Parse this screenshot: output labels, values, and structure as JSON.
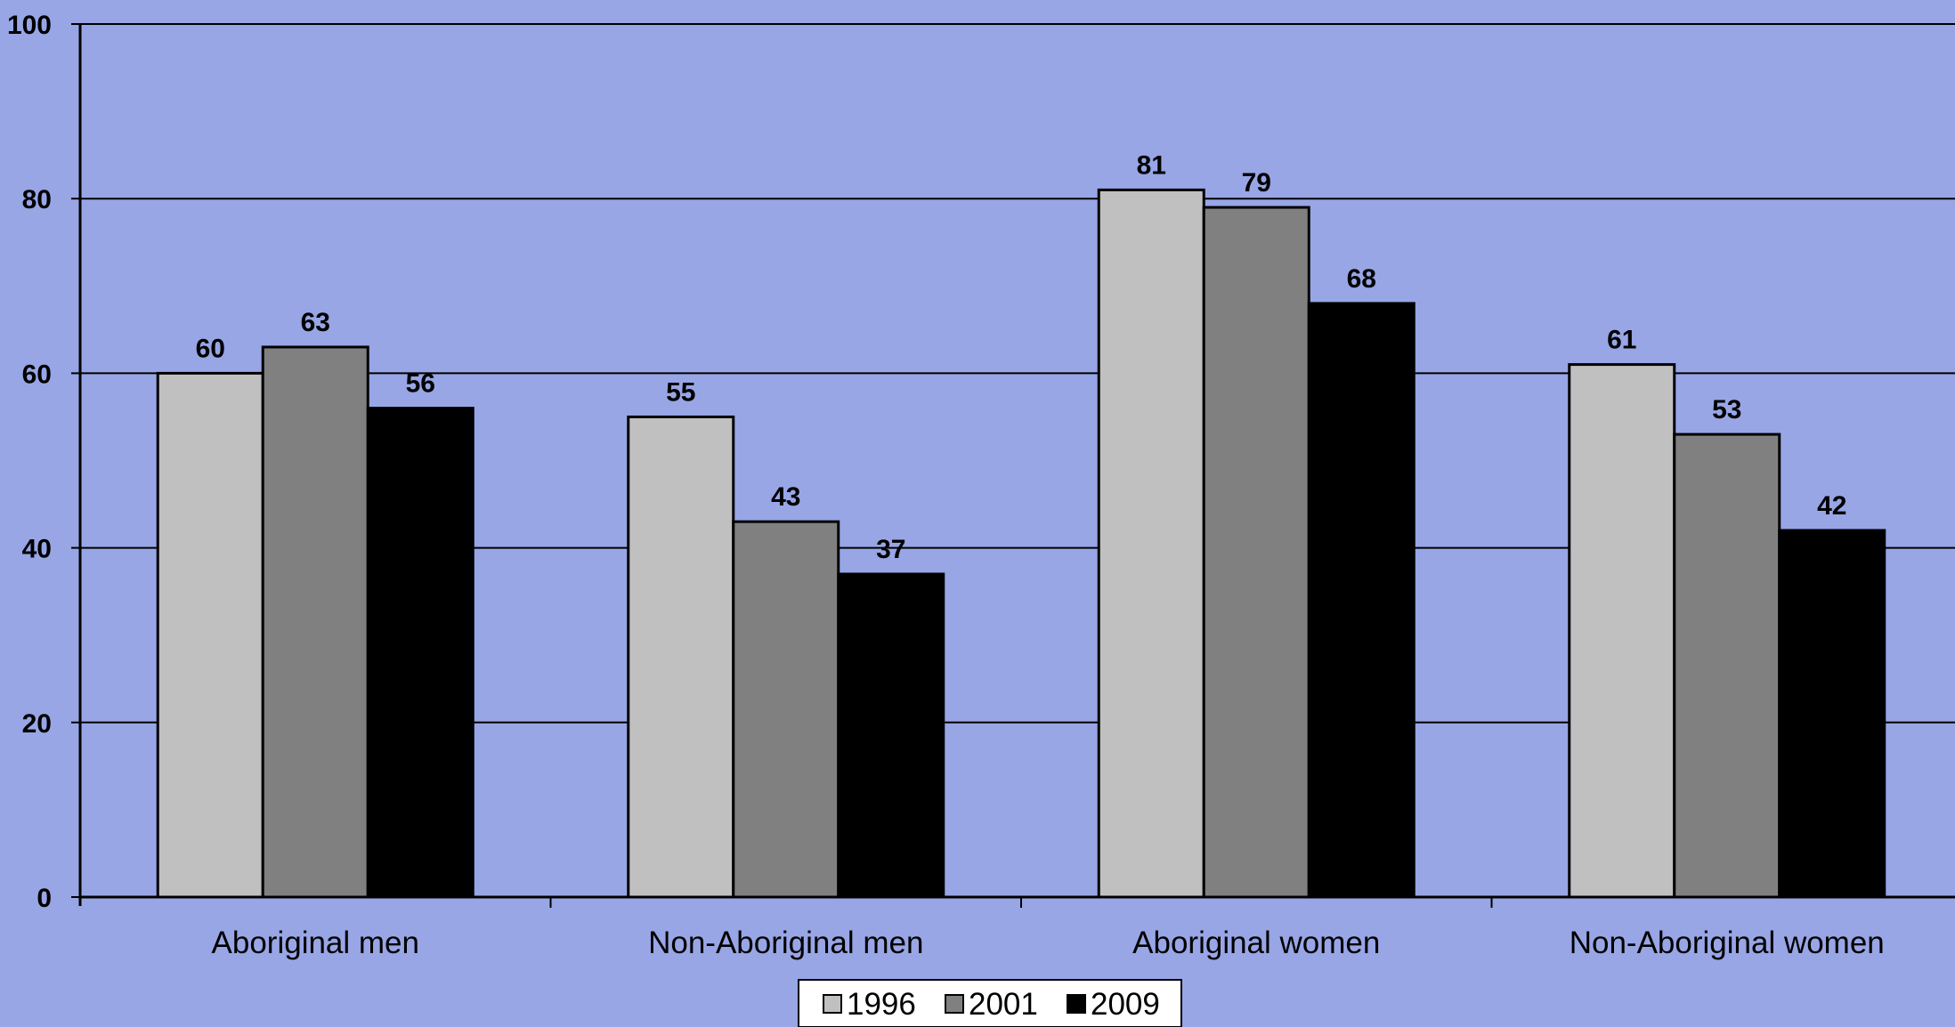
{
  "chart_data": {
    "type": "bar",
    "title": "",
    "xlabel": "",
    "ylabel": "",
    "categories": [
      "Aboriginal men",
      "Non-Aboriginal men",
      "Aboriginal women",
      "Non-Aboriginal women"
    ],
    "series": [
      {
        "name": "1996",
        "color": "#c0c0c0",
        "values": [
          60,
          55,
          81,
          61
        ]
      },
      {
        "name": "2001",
        "color": "#808080",
        "values": [
          63,
          43,
          79,
          53
        ]
      },
      {
        "name": "2009",
        "color": "#000000",
        "values": [
          56,
          37,
          68,
          42
        ]
      }
    ],
    "ylim": [
      0,
      100
    ],
    "yticks": [
      "0",
      "20",
      "40",
      "60",
      "80",
      "100"
    ],
    "grid": true,
    "legend_position": "bottom",
    "plot_background": "#98a6e6"
  }
}
